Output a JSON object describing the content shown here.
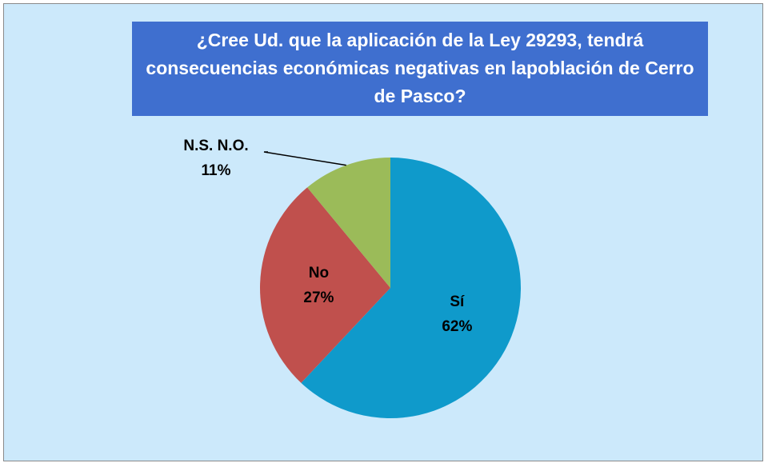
{
  "chart_data": {
    "type": "pie",
    "title": "¿Cree Ud. que la aplicación de la Ley 29293, tendrá consecuencias económicas negativas en lapoblación de Cerro de Pasco?",
    "categories": [
      "Sí",
      "No",
      "N.S. N.O."
    ],
    "values": [
      62,
      27,
      11
    ],
    "value_labels": [
      "62%",
      "27%",
      "11%"
    ],
    "colors": [
      "#0f9acb",
      "#c0504d",
      "#9bbb59"
    ]
  }
}
